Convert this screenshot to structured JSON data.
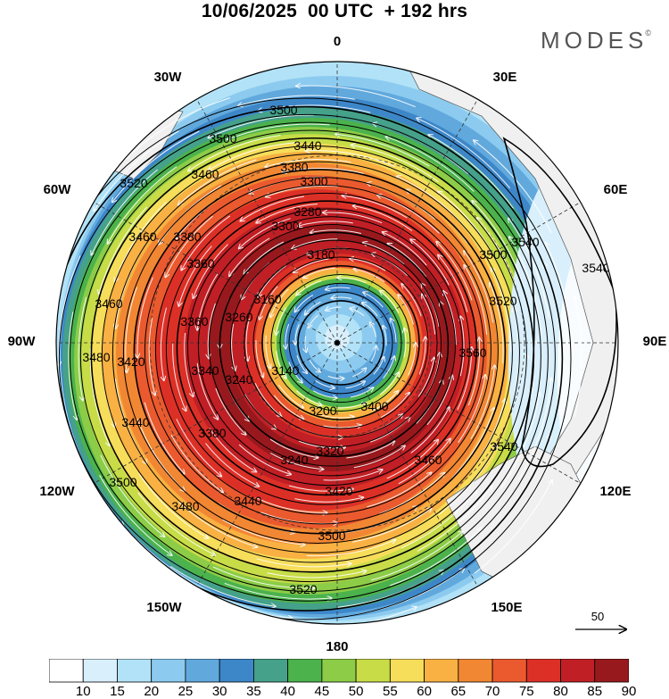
{
  "header": {
    "title": "10/06/2025  00 UTC  + 192 hrs",
    "brand": "MODES",
    "brand_mark": "©"
  },
  "map": {
    "projection": "south-polar-stereographic",
    "center": "south-pole",
    "longitude_labels": [
      "0",
      "30E",
      "60E",
      "90E",
      "120E",
      "150E",
      "180",
      "150W",
      "120W",
      "90W",
      "60W",
      "30W"
    ],
    "contour_labels": [
      "3500",
      "3500",
      "3440",
      "3380",
      "3300",
      "3520",
      "3460",
      "3460",
      "3380",
      "3280",
      "3360",
      "3300",
      "3180",
      "3160",
      "3460",
      "3360",
      "3260",
      "3140",
      "3480",
      "3420",
      "3340",
      "3240",
      "3200",
      "3440",
      "3380",
      "3320",
      "3240",
      "3500",
      "3440",
      "3420",
      "3480",
      "3500",
      "3520",
      "3540",
      "3540",
      "3520",
      "3540",
      "3500",
      "3560",
      "3460",
      "3400"
    ],
    "colors": {
      "background": "#ffffff",
      "land": "#f0f0f0",
      "contour": "#000000",
      "streamline": "#ffffff"
    }
  },
  "colorbar": {
    "ticks": [
      "10",
      "15",
      "20",
      "25",
      "30",
      "35",
      "40",
      "45",
      "50",
      "55",
      "60",
      "65",
      "70",
      "75",
      "80",
      "85",
      "90"
    ],
    "colors": [
      "#ffffff",
      "#d9f0fc",
      "#b2e2f7",
      "#8ccbef",
      "#61a9dd",
      "#3d87c9",
      "#45a18a",
      "#4bb24c",
      "#8ccc47",
      "#c7dc47",
      "#f6dd5a",
      "#f8b142",
      "#f18733",
      "#ea5a2e",
      "#dc3027",
      "#c01f25",
      "#98191d"
    ]
  },
  "reference_vector": {
    "value": "50"
  }
}
